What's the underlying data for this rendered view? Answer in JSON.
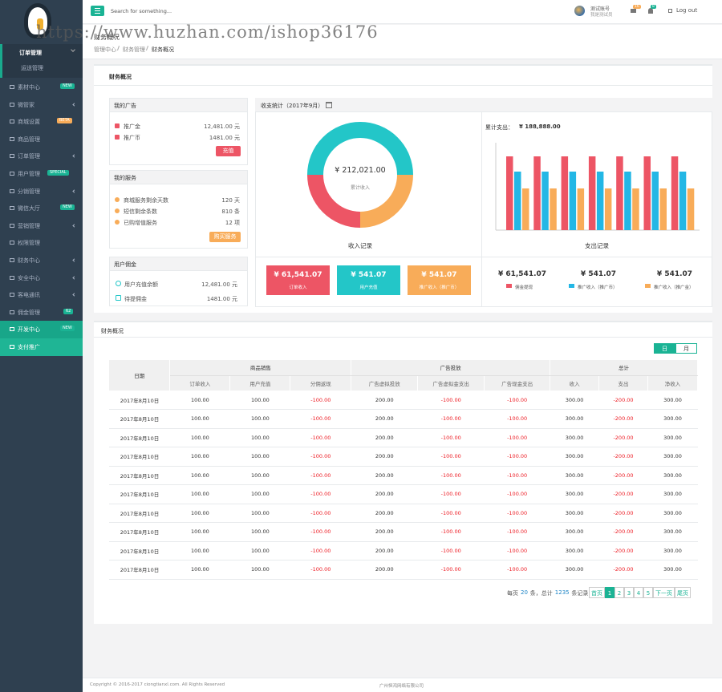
{
  "watermark": "https://www.huzhan.com/ishop36176",
  "sidebar": {
    "menu_open": "订单管理",
    "submenu": [
      "运送管理"
    ],
    "items": [
      {
        "label": "素材中心",
        "badge": "NEW",
        "badge_color": "#1ab394"
      },
      {
        "label": "微管家",
        "arrow": true
      },
      {
        "label": "商城设置",
        "badge": "BETA",
        "badge_color": "#f8ac59"
      },
      {
        "label": "商品管理"
      },
      {
        "label": "订单管理",
        "arrow": true
      },
      {
        "label": "用户管理",
        "badge": "SPECIAL",
        "badge_color": "#1ab394"
      },
      {
        "label": "分销管理",
        "arrow": true
      },
      {
        "label": "微信大厅",
        "badge": "NEW",
        "badge_color": "#1ab394"
      },
      {
        "label": "营销管理",
        "arrow": true
      },
      {
        "label": "权限管理"
      },
      {
        "label": "财务中心",
        "arrow": true
      },
      {
        "label": "安全中心",
        "arrow": true
      },
      {
        "label": "客电通讯",
        "arrow": true
      },
      {
        "label": "佣金管理",
        "badge": "62",
        "badge_color": "#1ab394"
      },
      {
        "label": "开发中心",
        "badge": "NEW",
        "badge_color": "#1ab394",
        "active": true
      },
      {
        "label": "支付推广",
        "active": true
      }
    ]
  },
  "topbar": {
    "search": "Search for something...",
    "user": "测试账号",
    "role": "我是测试员",
    "mail_count": "16",
    "bell_count": "8",
    "logout": "Log out"
  },
  "breadcrumb": {
    "title": "财务概况",
    "path": [
      "管理中心",
      "财务管理",
      "财务概况"
    ]
  },
  "overview": {
    "title": "财务概况",
    "ads": {
      "title": "我的广告",
      "rows": [
        [
          "推广金",
          "12,481.00 元"
        ],
        [
          "推广币",
          "1481.00 元"
        ]
      ],
      "button": "充值"
    },
    "services": {
      "title": "我的服务",
      "rows": [
        [
          "商城服务剩余天数",
          "120 天"
        ],
        [
          "短信剩余条数",
          "810 条"
        ],
        [
          "已购增值服务",
          "12 项"
        ]
      ],
      "button": "购买服务"
    },
    "commission": {
      "title": "用户佣金",
      "rows": [
        [
          "用户充值余额",
          "12,481.00 元"
        ],
        [
          "待提佣金",
          "1481.00 元"
        ]
      ]
    },
    "stats_title": "收支统计（2017年9月）",
    "income_cards": [
      {
        "value": "¥ 61,541.07",
        "label": "订单收入",
        "color": "#ed5565"
      },
      {
        "value": "¥ 541.07",
        "label": "用户充值",
        "color": "#23c6c8"
      },
      {
        "value": "¥ 541.07",
        "label": "推广收入（推广币）",
        "color": "#f8ac59"
      }
    ],
    "expense": {
      "total_label": "累计支出：",
      "total": "¥ 188,888.00",
      "items": [
        "¥ 61,541.07",
        "¥ 541.07",
        "¥ 541.07"
      ]
    }
  },
  "chart_data": [
    {
      "type": "pie",
      "donut": true,
      "title": "收入记录",
      "center_value": "¥ 212,021.00",
      "center_label": "累计收入",
      "values": [
        50,
        25,
        25
      ],
      "colors": [
        "#23c6c8",
        "#f8ac59",
        "#ed5565"
      ]
    },
    {
      "type": "bar",
      "title": "支出记录",
      "categories": [
        null,
        null,
        null,
        null,
        null,
        null,
        null
      ],
      "ylim": [
        0,
        100
      ],
      "series": [
        {
          "name": "佣金提现",
          "color": "#ed5565",
          "values": [
            92,
            92,
            92,
            92,
            92,
            92,
            92
          ]
        },
        {
          "name": "推广收入（推广币）",
          "color": "#23b7e5",
          "values": [
            73,
            73,
            73,
            73,
            73,
            73,
            73
          ]
        },
        {
          "name": "推广收入（推广金）",
          "color": "#f8ac59",
          "values": [
            52,
            52,
            52,
            52,
            52,
            52,
            52
          ]
        }
      ]
    }
  ],
  "table": {
    "title": "财务概况",
    "toggle": [
      "日",
      "月"
    ],
    "date_header": "日期",
    "groups": [
      {
        "name": "商品销售",
        "cols": [
          "订单收入",
          "用户充值",
          "分佣返现"
        ]
      },
      {
        "name": "广告投放",
        "cols": [
          "广告虚拟投放",
          "广告虚拟金支出",
          "广告现金支出"
        ]
      },
      {
        "name": "总计",
        "cols": [
          "收入",
          "支出",
          "净收入"
        ]
      }
    ],
    "rows": [
      [
        "2017年8月10日",
        "100.00",
        "100.00",
        "-100.00",
        "200.00",
        "-100.00",
        "-100.00",
        "300.00",
        "-200.00",
        "300.00"
      ],
      [
        "2017年8月10日",
        "100.00",
        "100.00",
        "-100.00",
        "200.00",
        "-100.00",
        "-100.00",
        "300.00",
        "-200.00",
        "300.00"
      ],
      [
        "2017年8月10日",
        "100.00",
        "100.00",
        "-100.00",
        "200.00",
        "-100.00",
        "-100.00",
        "300.00",
        "-200.00",
        "300.00"
      ],
      [
        "2017年8月10日",
        "100.00",
        "100.00",
        "-100.00",
        "200.00",
        "-100.00",
        "-100.00",
        "300.00",
        "-200.00",
        "300.00"
      ],
      [
        "2017年8月10日",
        "100.00",
        "100.00",
        "-100.00",
        "200.00",
        "-100.00",
        "-100.00",
        "300.00",
        "-200.00",
        "300.00"
      ],
      [
        "2017年8月10日",
        "100.00",
        "100.00",
        "-100.00",
        "200.00",
        "-100.00",
        "-100.00",
        "300.00",
        "-200.00",
        "300.00"
      ],
      [
        "2017年8月10日",
        "100.00",
        "100.00",
        "-100.00",
        "200.00",
        "-100.00",
        "-100.00",
        "300.00",
        "-200.00",
        "300.00"
      ],
      [
        "2017年8月10日",
        "100.00",
        "100.00",
        "-100.00",
        "200.00",
        "-100.00",
        "-100.00",
        "300.00",
        "-200.00",
        "300.00"
      ],
      [
        "2017年8月10日",
        "100.00",
        "100.00",
        "-100.00",
        "200.00",
        "-100.00",
        "-100.00",
        "300.00",
        "-200.00",
        "300.00"
      ],
      [
        "2017年8月10日",
        "100.00",
        "100.00",
        "-100.00",
        "200.00",
        "-100.00",
        "-100.00",
        "300.00",
        "-200.00",
        "300.00"
      ]
    ],
    "pagination": {
      "text": [
        "每页",
        "20",
        "条，总计",
        "1235",
        "条记录"
      ],
      "buttons": [
        "首页",
        "1",
        "2",
        "3",
        "4",
        "5",
        "下一页",
        "尾页"
      ]
    }
  },
  "footer": {
    "copyright": "Copyright © 2016-2017 ciongtianxl.com. All Rights Reserved",
    "company": "广州恒鸿网络有限公司"
  }
}
